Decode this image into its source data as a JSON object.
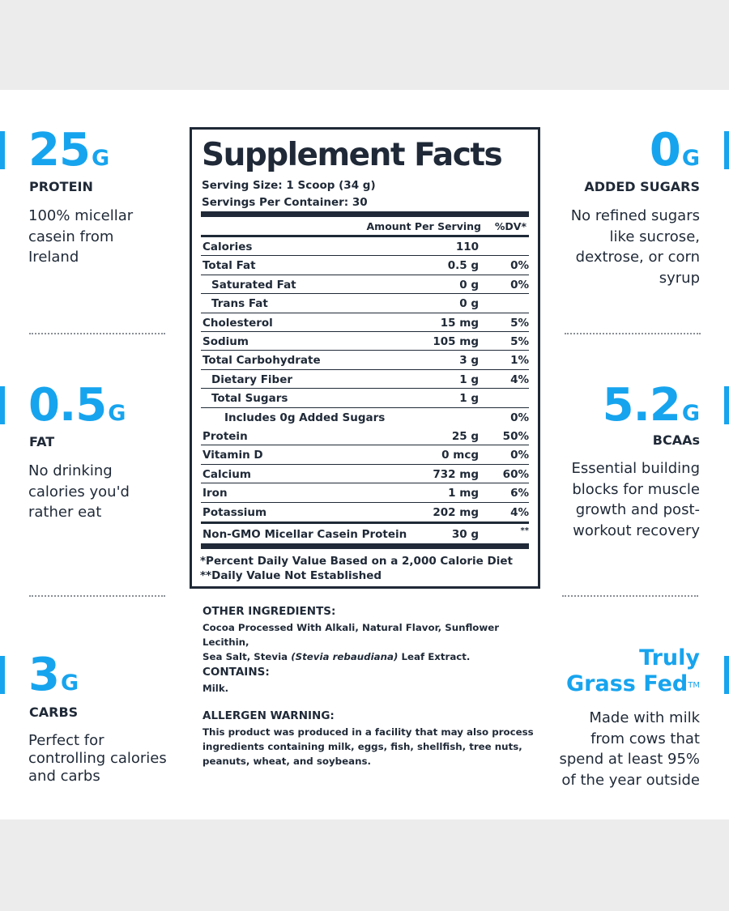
{
  "left": [
    {
      "value": "25",
      "unit": "G",
      "label": "PROTEIN",
      "desc": [
        "100% micellar",
        "casein from",
        "Ireland"
      ]
    },
    {
      "value": "0.5",
      "unit": "G",
      "label": "FAT",
      "desc": [
        "No drinking",
        "calories you'd",
        "rather eat"
      ]
    },
    {
      "value": "3",
      "unit": "G",
      "label": "CARBS",
      "desc": [
        "Perfect for",
        "controlling calories",
        "and carbs"
      ]
    }
  ],
  "right": [
    {
      "value": "0",
      "unit": "G",
      "label": "ADDED SUGARS",
      "desc": [
        "No refined sugars",
        "like sucrose,",
        "dextrose, or corn",
        "syrup"
      ]
    },
    {
      "value": "5.2",
      "unit": "G",
      "label": "BCAAs",
      "desc": [
        "Essential building",
        "blocks for muscle",
        "growth and post-",
        "workout recovery"
      ]
    },
    {
      "title_line1": "Truly",
      "title_line2": "Grass Fed",
      "tm": "TM",
      "desc": [
        "Made with milk",
        "from cows that",
        "spend at least 95%",
        "of the year outside"
      ]
    }
  ],
  "facts": {
    "title": "Supplement Facts",
    "serving_size": "Serving Size: 1 Scoop (34 g)",
    "servings_per": "Servings Per Container: 30",
    "amount_header": "Amount Per Serving",
    "dv_header": "%DV*",
    "rows": [
      {
        "name": "Calories",
        "amount": "110",
        "dv": ""
      },
      {
        "name": "Total Fat",
        "amount": "0.5 g",
        "dv": "0%"
      },
      {
        "name": "Saturated Fat",
        "amount": "0 g",
        "dv": "0%"
      },
      {
        "name": "Trans Fat",
        "amount": "0 g",
        "dv": ""
      },
      {
        "name": "Cholesterol",
        "amount": "15 mg",
        "dv": "5%"
      },
      {
        "name": "Sodium",
        "amount": "105 mg",
        "dv": "5%"
      },
      {
        "name": "Total Carbohydrate",
        "amount": "3 g",
        "dv": "1%"
      },
      {
        "name": "Dietary Fiber",
        "amount": "1 g",
        "dv": "4%"
      },
      {
        "name": "Total Sugars",
        "amount": "1 g",
        "dv": ""
      },
      {
        "name": "Includes 0g Added Sugars",
        "amount": "",
        "dv": "0%"
      },
      {
        "name": "Protein",
        "amount": "25 g",
        "dv": "50%"
      },
      {
        "name": "Vitamin D",
        "amount": "0 mcg",
        "dv": "0%"
      },
      {
        "name": "Calcium",
        "amount": "732 mg",
        "dv": "60%"
      },
      {
        "name": "Iron",
        "amount": "1 mg",
        "dv": "6%"
      },
      {
        "name": "Potassium",
        "amount": "202 mg",
        "dv": "4%"
      },
      {
        "name": "Non-GMO Micellar Casein Protein",
        "amount": "30 g",
        "dv": "**"
      }
    ],
    "footnote1": "*Percent Daily Value Based on a 2,000 Calorie Diet",
    "footnote2": "**Daily Value Not Established"
  },
  "ingredients": {
    "other_heading": "OTHER INGREDIENTS:",
    "other_line1": "Cocoa Processed With Alkali, Natural Flavor, Sunflower Lecithin,",
    "other_line2_pre": "Sea Salt, Stevia ",
    "other_line2_italic": "(Stevia rebaudiana)",
    "other_line2_post": " Leaf Extract.",
    "contains_heading": "CONTAINS:",
    "contains_text": "Milk.",
    "allergen_heading": "ALLERGEN WARNING:",
    "allergen_line1": "This product was produced in a facility that may also process",
    "allergen_line2": "ingredients containing milk, eggs, fish, shellfish, tree nuts,",
    "allergen_line3": "peanuts, wheat, and soybeans."
  },
  "colors": {
    "accent": "#17a4ee",
    "text": "#1f2937",
    "page": "#ececec",
    "panel": "#ffffff"
  }
}
